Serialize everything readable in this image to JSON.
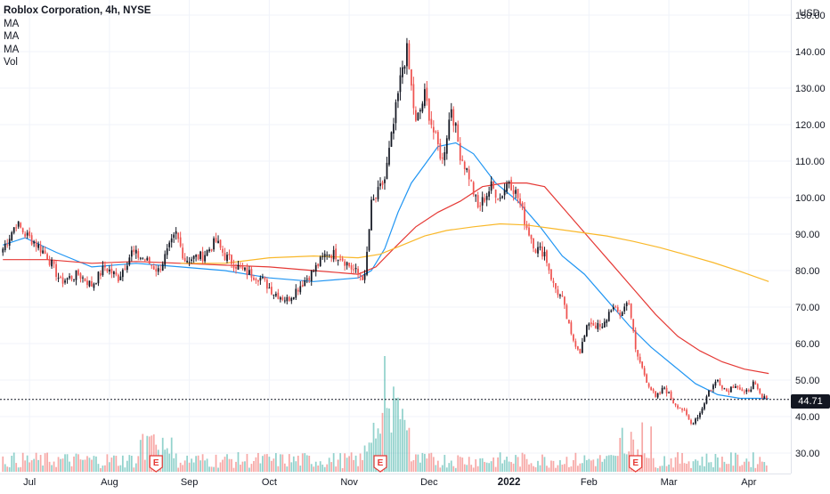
{
  "header": {
    "title": "Roblox Corporation, 4h, NYSE",
    "indicators": [
      "MA",
      "MA",
      "MA",
      "Vol"
    ]
  },
  "colors": {
    "up": "#131722",
    "down": "#ef5350",
    "ma_fast": "#2196f3",
    "ma_mid": "#e53935",
    "ma_slow": "#f9b82a",
    "vol_up": "#26a69a",
    "vol_down": "#ef5350",
    "earnings": "#e53935"
  },
  "chart_data": {
    "type": "candlestick",
    "currency": "USD",
    "last_price": "44.71",
    "y_ticks": [
      "30.00",
      "40.00",
      "50.00",
      "60.00",
      "70.00",
      "80.00",
      "90.00",
      "100.00",
      "110.00",
      "120.00",
      "130.00",
      "140.00",
      "150.00"
    ],
    "y_tick_values": [
      30,
      40,
      50,
      60,
      70,
      80,
      90,
      100,
      110,
      120,
      130,
      140,
      150
    ],
    "x_ticks": [
      {
        "label": "Jul",
        "x_index": 12
      },
      {
        "label": "Aug",
        "x_index": 48
      },
      {
        "label": "Sep",
        "x_index": 84
      },
      {
        "label": "Oct",
        "x_index": 120
      },
      {
        "label": "Nov",
        "x_index": 156
      },
      {
        "label": "Dec",
        "x_index": 192
      },
      {
        "label": "2022",
        "x_index": 228,
        "bold": true
      },
      {
        "label": "Feb",
        "x_index": 264
      },
      {
        "label": "Mar",
        "x_index": 300
      },
      {
        "label": "Apr",
        "x_index": 336
      }
    ],
    "x_count": 345,
    "earnings_x_index": [
      69,
      170,
      285
    ],
    "earnings_label": "E",
    "ylim": [
      26,
      152
    ],
    "price_anchors": [
      [
        0,
        86
      ],
      [
        6,
        93
      ],
      [
        10,
        90
      ],
      [
        14,
        88
      ],
      [
        20,
        84
      ],
      [
        26,
        77
      ],
      [
        34,
        79
      ],
      [
        40,
        76
      ],
      [
        46,
        81
      ],
      [
        52,
        78
      ],
      [
        58,
        85
      ],
      [
        64,
        83
      ],
      [
        70,
        80
      ],
      [
        74,
        85
      ],
      [
        78,
        90
      ],
      [
        82,
        83
      ],
      [
        90,
        84
      ],
      [
        96,
        88
      ],
      [
        100,
        84
      ],
      [
        108,
        80
      ],
      [
        116,
        78
      ],
      [
        122,
        74
      ],
      [
        128,
        72
      ],
      [
        134,
        76
      ],
      [
        140,
        80
      ],
      [
        146,
        85
      ],
      [
        152,
        84
      ],
      [
        158,
        80
      ],
      [
        163,
        78
      ],
      [
        166,
        98
      ],
      [
        168,
        100
      ],
      [
        172,
        105
      ],
      [
        176,
        120
      ],
      [
        180,
        136
      ],
      [
        182,
        140
      ],
      [
        186,
        120
      ],
      [
        190,
        128
      ],
      [
        194,
        118
      ],
      [
        198,
        110
      ],
      [
        202,
        125
      ],
      [
        206,
        112
      ],
      [
        210,
        106
      ],
      [
        214,
        97
      ],
      [
        220,
        103
      ],
      [
        224,
        100
      ],
      [
        228,
        105
      ],
      [
        232,
        100
      ],
      [
        236,
        92
      ],
      [
        240,
        86
      ],
      [
        244,
        85
      ],
      [
        248,
        76
      ],
      [
        252,
        72
      ],
      [
        256,
        62
      ],
      [
        260,
        58
      ],
      [
        264,
        66
      ],
      [
        270,
        64
      ],
      [
        274,
        70
      ],
      [
        278,
        68
      ],
      [
        282,
        72
      ],
      [
        285,
        58
      ],
      [
        290,
        50
      ],
      [
        294,
        45
      ],
      [
        298,
        48
      ],
      [
        302,
        44
      ],
      [
        306,
        42
      ],
      [
        310,
        38
      ],
      [
        314,
        41
      ],
      [
        318,
        47
      ],
      [
        322,
        50
      ],
      [
        326,
        47
      ],
      [
        330,
        49
      ],
      [
        334,
        46
      ],
      [
        338,
        49
      ],
      [
        342,
        45
      ],
      [
        345,
        44.7
      ]
    ],
    "series": [
      {
        "kind": "line",
        "color_key": "ma_fast",
        "points": [
          [
            0,
            87
          ],
          [
            10,
            89
          ],
          [
            24,
            85
          ],
          [
            40,
            81
          ],
          [
            60,
            82
          ],
          [
            80,
            81
          ],
          [
            100,
            80
          ],
          [
            120,
            78
          ],
          [
            140,
            77
          ],
          [
            160,
            78
          ],
          [
            166,
            80
          ],
          [
            172,
            86
          ],
          [
            178,
            96
          ],
          [
            184,
            104
          ],
          [
            190,
            109
          ],
          [
            196,
            114
          ],
          [
            204,
            115
          ],
          [
            212,
            112
          ],
          [
            222,
            104
          ],
          [
            232,
            99
          ],
          [
            242,
            92
          ],
          [
            252,
            84
          ],
          [
            262,
            79
          ],
          [
            272,
            72
          ],
          [
            282,
            65
          ],
          [
            292,
            59
          ],
          [
            302,
            54
          ],
          [
            312,
            49
          ],
          [
            322,
            46
          ],
          [
            332,
            45
          ],
          [
            340,
            45
          ],
          [
            345,
            44.9
          ]
        ]
      },
      {
        "kind": "line",
        "color_key": "ma_mid",
        "points": [
          [
            0,
            83
          ],
          [
            20,
            83
          ],
          [
            40,
            82
          ],
          [
            60,
            82.5
          ],
          [
            80,
            82
          ],
          [
            100,
            81.5
          ],
          [
            120,
            81
          ],
          [
            140,
            80
          ],
          [
            160,
            79
          ],
          [
            168,
            81
          ],
          [
            176,
            86
          ],
          [
            186,
            92
          ],
          [
            196,
            96
          ],
          [
            206,
            99
          ],
          [
            216,
            103
          ],
          [
            226,
            104
          ],
          [
            236,
            104
          ],
          [
            244,
            103
          ],
          [
            254,
            96
          ],
          [
            264,
            89
          ],
          [
            274,
            82
          ],
          [
            284,
            75
          ],
          [
            294,
            68
          ],
          [
            304,
            62
          ],
          [
            314,
            58
          ],
          [
            324,
            55
          ],
          [
            334,
            53
          ],
          [
            345,
            51.8
          ]
        ]
      },
      {
        "kind": "line",
        "color_key": "ma_slow",
        "points": [
          [
            80,
            82
          ],
          [
            100,
            82
          ],
          [
            120,
            83.5
          ],
          [
            140,
            84
          ],
          [
            160,
            83.5
          ],
          [
            170,
            84.5
          ],
          [
            180,
            87
          ],
          [
            190,
            89.5
          ],
          [
            200,
            91
          ],
          [
            212,
            92
          ],
          [
            224,
            92.8
          ],
          [
            236,
            92.5
          ],
          [
            248,
            91.5
          ],
          [
            260,
            90.5
          ],
          [
            272,
            89.5
          ],
          [
            284,
            88
          ],
          [
            296,
            86.3
          ],
          [
            308,
            84.3
          ],
          [
            320,
            82.2
          ],
          [
            332,
            79.8
          ],
          [
            345,
            77
          ]
        ]
      }
    ]
  }
}
